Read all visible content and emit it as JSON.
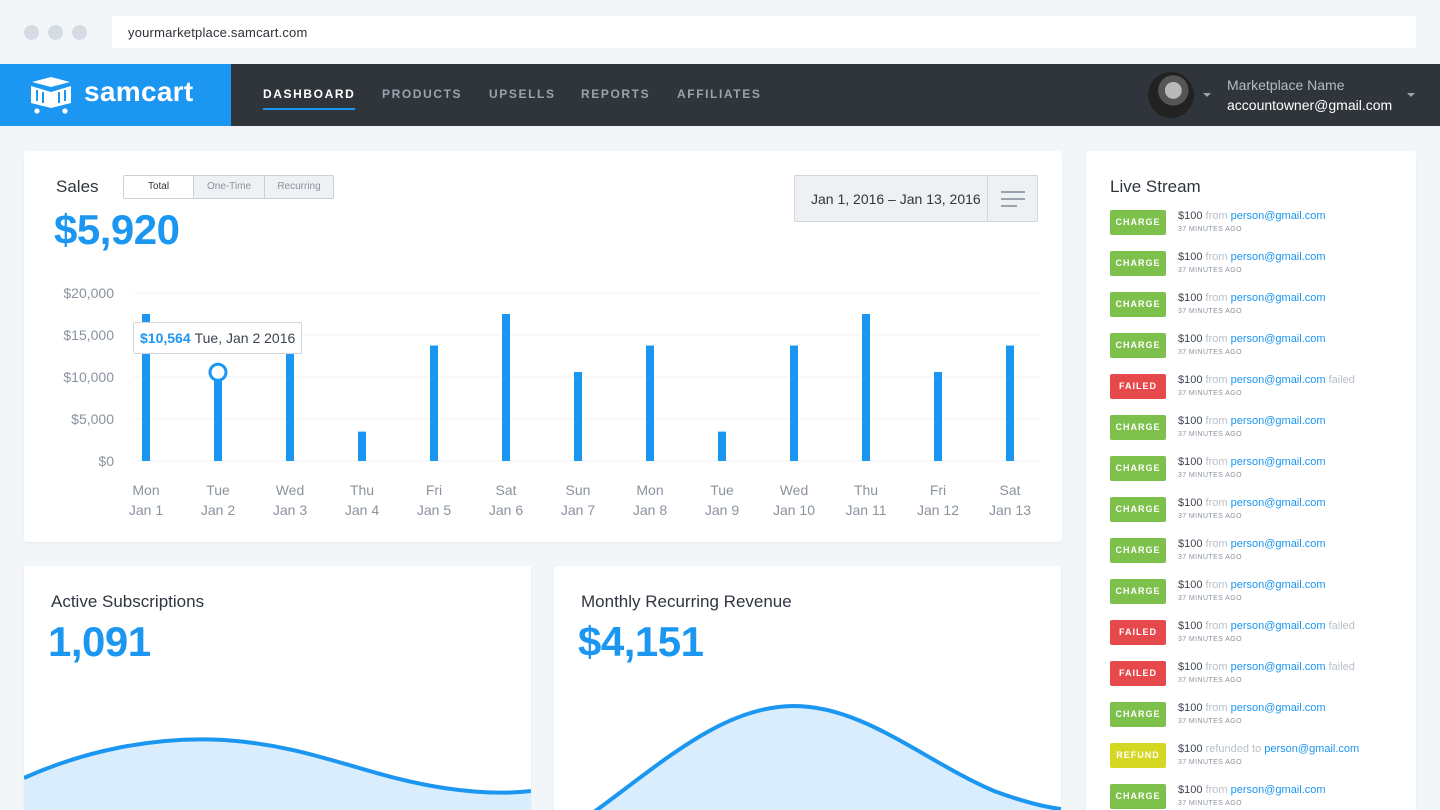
{
  "browser": {
    "url": "yourmarketplace.samcart.com"
  },
  "brand": {
    "name": "samcart"
  },
  "nav": {
    "links": [
      "DASHBOARD",
      "PRODUCTS",
      "UPSELLS",
      "REPORTS",
      "AFFILIATES"
    ],
    "active": "DASHBOARD"
  },
  "account": {
    "name": "Marketplace Name",
    "email": "accountowner@gmail.com"
  },
  "sales": {
    "title": "Sales",
    "total": "$5,920",
    "tabs": [
      "Total",
      "One-Time",
      "Recurring"
    ],
    "active_tab": "Total",
    "date_range": "Jan 1, 2016 – Jan 13, 2016",
    "tooltip": {
      "value": "$10,564",
      "date": "Tue, Jan 2 2016"
    }
  },
  "chart_data": {
    "type": "bar",
    "categories": [
      "Mon Jan 1",
      "Tue Jan 2",
      "Wed Jan 3",
      "Thu Jan 4",
      "Fri Jan 5",
      "Sat Jan 6",
      "Sun Jan 7",
      "Mon Jan 8",
      "Tue Jan 9",
      "Wed Jan 10",
      "Thu Jan 11",
      "Fri Jan 12",
      "Sat Jan 13"
    ],
    "x_day": [
      "Mon",
      "Tue",
      "Wed",
      "Thu",
      "Fri",
      "Sat",
      "Sun",
      "Mon",
      "Tue",
      "Wed",
      "Thu",
      "Fri",
      "Sat"
    ],
    "x_date": [
      "Jan 1",
      "Jan 2",
      "Jan 3",
      "Jan 4",
      "Jan 5",
      "Jan 6",
      "Jan 7",
      "Jan 8",
      "Jan 9",
      "Jan 10",
      "Jan 11",
      "Jan 12",
      "Jan 13"
    ],
    "values": [
      17500,
      10564,
      13750,
      3500,
      13750,
      17500,
      10600,
      13750,
      3500,
      13750,
      17500,
      10600,
      13750
    ],
    "yticks": [
      "$20,000",
      "$15,000",
      "$10,000",
      "$5,000",
      "$0"
    ],
    "ylim": [
      0,
      20000
    ],
    "grid": true,
    "color": "#1b96f1"
  },
  "active_subscriptions": {
    "title": "Active Subscriptions",
    "value": "1,091"
  },
  "mrr": {
    "title": "Monthly Recurring Revenue",
    "value": "$4,151"
  },
  "live_stream": {
    "title": "Live Stream",
    "items": [
      {
        "status": "CHARGE",
        "amount": "$100",
        "connector": "from",
        "email": "person@gmail.com",
        "suffix": "",
        "time": "37 MINUTES AGO"
      },
      {
        "status": "CHARGE",
        "amount": "$100",
        "connector": "from",
        "email": "person@gmail.com",
        "suffix": "",
        "time": "37 MINUTES AGO"
      },
      {
        "status": "CHARGE",
        "amount": "$100",
        "connector": "from",
        "email": "person@gmail.com",
        "suffix": "",
        "time": "37 MINUTES AGO"
      },
      {
        "status": "CHARGE",
        "amount": "$100",
        "connector": "from",
        "email": "person@gmail.com",
        "suffix": "",
        "time": "37 MINUTES AGO"
      },
      {
        "status": "FAILED",
        "amount": "$100",
        "connector": "from",
        "email": "person@gmail.com",
        "suffix": "failed",
        "time": "37 MINUTES AGO"
      },
      {
        "status": "CHARGE",
        "amount": "$100",
        "connector": "from",
        "email": "person@gmail.com",
        "suffix": "",
        "time": "37 MINUTES AGO"
      },
      {
        "status": "CHARGE",
        "amount": "$100",
        "connector": "from",
        "email": "person@gmail.com",
        "suffix": "",
        "time": "37 MINUTES AGO"
      },
      {
        "status": "CHARGE",
        "amount": "$100",
        "connector": "from",
        "email": "person@gmail.com",
        "suffix": "",
        "time": "37 MINUTES AGO"
      },
      {
        "status": "CHARGE",
        "amount": "$100",
        "connector": "from",
        "email": "person@gmail.com",
        "suffix": "",
        "time": "37 MINUTES AGO"
      },
      {
        "status": "CHARGE",
        "amount": "$100",
        "connector": "from",
        "email": "person@gmail.com",
        "suffix": "",
        "time": "37 MINUTES AGO"
      },
      {
        "status": "FAILED",
        "amount": "$100",
        "connector": "from",
        "email": "person@gmail.com",
        "suffix": "failed",
        "time": "37 MINUTES AGO"
      },
      {
        "status": "FAILED",
        "amount": "$100",
        "connector": "from",
        "email": "person@gmail.com",
        "suffix": "failed",
        "time": "37 MINUTES AGO"
      },
      {
        "status": "CHARGE",
        "amount": "$100",
        "connector": "from",
        "email": "person@gmail.com",
        "suffix": "",
        "time": "37 MINUTES AGO"
      },
      {
        "status": "REFUND",
        "amount": "$100",
        "connector": "refunded to",
        "email": "person@gmail.com",
        "suffix": "",
        "time": "37 MINUTES AGO"
      },
      {
        "status": "CHARGE",
        "amount": "$100",
        "connector": "from",
        "email": "person@gmail.com",
        "suffix": "",
        "time": "37 MINUTES AGO"
      }
    ]
  }
}
